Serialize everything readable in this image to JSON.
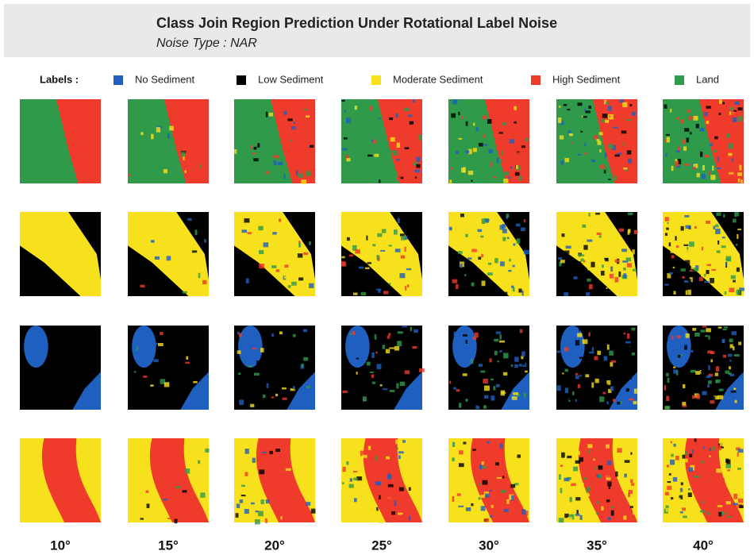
{
  "header": {
    "title": "Class Join Region Prediction Under Rotational Label Noise",
    "subtitle": "Noise Type : NAR"
  },
  "legend": {
    "title": "Labels :",
    "items": [
      {
        "label": "No Sediment",
        "color": "#1f5fbf"
      },
      {
        "label": "Low Sediment",
        "color": "#000000"
      },
      {
        "label": "Moderate Sediment",
        "color": "#f7e01c"
      },
      {
        "label": "High Sediment",
        "color": "#ee3b2b"
      },
      {
        "label": "Land",
        "color": "#2e9a4a"
      }
    ]
  },
  "columns": [
    "10°",
    "15°",
    "20°",
    "25°",
    "30°",
    "35°",
    "40°"
  ]
}
